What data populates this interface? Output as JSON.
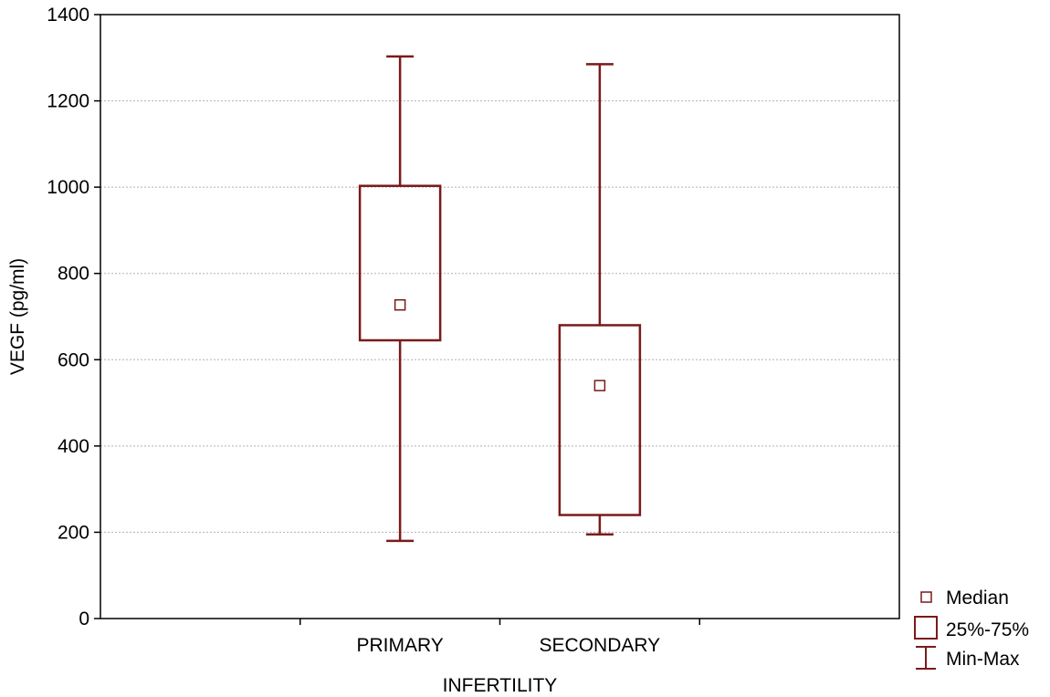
{
  "chart_data": {
    "type": "box",
    "xlabel": "INFERTILITY",
    "ylabel": "VEGF (pg/ml)",
    "ylim": [
      0,
      1400
    ],
    "yticks": [
      0,
      200,
      400,
      600,
      800,
      1000,
      1200,
      1400
    ],
    "categories": [
      "PRIMARY",
      "SECONDARY"
    ],
    "boxes": [
      {
        "category": "PRIMARY",
        "min": 180,
        "q1": 645,
        "median": 727,
        "q3": 1003,
        "max": 1303
      },
      {
        "category": "SECONDARY",
        "min": 195,
        "q1": 240,
        "median": 540,
        "q3": 680,
        "max": 1285
      }
    ],
    "legend": [
      "Median",
      "25%-75%",
      "Min-Max"
    ],
    "legend_position": "bottom-right",
    "grid": true,
    "color": "#7a1a1a"
  }
}
